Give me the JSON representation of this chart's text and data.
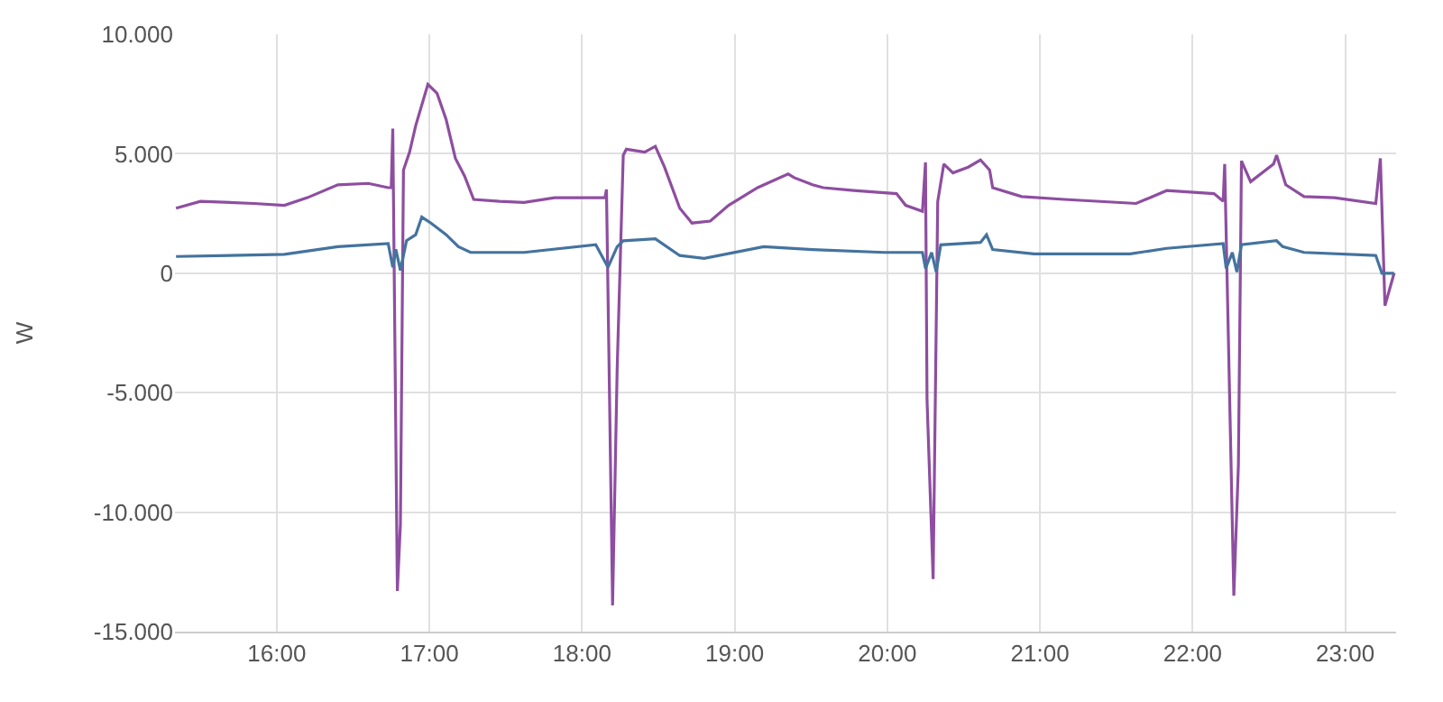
{
  "chart_data": {
    "type": "line",
    "ylabel": "W",
    "grid": true,
    "marker": "none",
    "line_style": "solid",
    "xlim": [
      15.333,
      23.333
    ],
    "ylim": [
      -15000,
      10000
    ],
    "xticks": [
      {
        "value": 16,
        "label": "16:00"
      },
      {
        "value": 17,
        "label": "17:00"
      },
      {
        "value": 18,
        "label": "18:00"
      },
      {
        "value": 19,
        "label": "19:00"
      },
      {
        "value": 20,
        "label": "20:00"
      },
      {
        "value": 21,
        "label": "21:00"
      },
      {
        "value": 22,
        "label": "22:00"
      },
      {
        "value": 23,
        "label": "23:00"
      }
    ],
    "yticks": [
      {
        "value": 10000,
        "label": "10.000"
      },
      {
        "value": 5000,
        "label": "5.000"
      },
      {
        "value": 0,
        "label": "0"
      },
      {
        "value": -5000,
        "label": "-5.000"
      },
      {
        "value": -10000,
        "label": "-10.000"
      },
      {
        "value": -15000,
        "label": "-15.000"
      }
    ],
    "series": [
      {
        "color": "#8e4ea0",
        "x": [
          15.34,
          15.5,
          15.85,
          16.05,
          16.2,
          16.4,
          16.6,
          16.73,
          16.75,
          16.76,
          16.79,
          16.81,
          16.83,
          16.87,
          16.91,
          16.99,
          17.05,
          17.11,
          17.17,
          17.23,
          17.29,
          17.46,
          17.62,
          17.82,
          18.15,
          18.16,
          18.2,
          18.23,
          18.27,
          18.29,
          18.41,
          18.48,
          18.54,
          18.64,
          18.72,
          18.84,
          18.96,
          19.15,
          19.35,
          19.39,
          19.51,
          19.58,
          19.78,
          20.06,
          20.12,
          20.23,
          20.25,
          20.26,
          20.3,
          20.33,
          20.37,
          20.43,
          20.53,
          20.61,
          20.67,
          20.69,
          20.88,
          21.16,
          21.63,
          21.83,
          22.14,
          22.2,
          22.21,
          22.27,
          22.3,
          22.32,
          22.38,
          22.53,
          22.55,
          22.61,
          22.73,
          22.93,
          23.2,
          23.23,
          23.26,
          23.32
        ],
        "values": [
          2720,
          3010,
          2920,
          2840,
          3160,
          3700,
          3760,
          3580,
          3580,
          6050,
          -13300,
          -10500,
          4320,
          5070,
          6170,
          7900,
          7530,
          6420,
          4810,
          4070,
          3090,
          3010,
          2960,
          3160,
          3160,
          3500,
          -13900,
          -4000,
          4940,
          5190,
          5070,
          5310,
          4440,
          2720,
          2100,
          2180,
          2840,
          3580,
          4150,
          4000,
          3700,
          3580,
          3460,
          3330,
          2840,
          2590,
          4640,
          -5300,
          -12800,
          3000,
          4570,
          4200,
          4440,
          4740,
          4320,
          3580,
          3210,
          3090,
          2920,
          3460,
          3330,
          3010,
          4570,
          -13500,
          -8000,
          4700,
          3830,
          4570,
          4940,
          3700,
          3210,
          3160,
          2920,
          4810,
          -1360,
          0
        ]
      },
      {
        "color": "#44739e",
        "x": [
          15.34,
          16.05,
          16.4,
          16.73,
          16.76,
          16.78,
          16.81,
          16.85,
          16.91,
          16.95,
          17.01,
          17.11,
          17.19,
          17.27,
          17.62,
          18.09,
          18.17,
          18.23,
          18.27,
          18.48,
          18.64,
          18.8,
          19.19,
          19.51,
          19.98,
          20.23,
          20.25,
          20.29,
          20.32,
          20.35,
          20.61,
          20.65,
          20.69,
          20.96,
          21.59,
          21.83,
          22.2,
          22.22,
          22.26,
          22.29,
          22.32,
          22.55,
          22.59,
          22.73,
          23.2,
          23.24,
          23.32
        ],
        "values": [
          700,
          790,
          1110,
          1240,
          250,
          1000,
          120,
          1360,
          1610,
          2350,
          2100,
          1610,
          1110,
          870,
          870,
          1190,
          250,
          1110,
          1360,
          1440,
          740,
          620,
          1110,
          990,
          870,
          870,
          200,
          870,
          50,
          1190,
          1290,
          1610,
          990,
          810,
          810,
          1040,
          1240,
          200,
          870,
          50,
          1190,
          1360,
          1110,
          870,
          740,
          0,
          0
        ]
      }
    ]
  }
}
